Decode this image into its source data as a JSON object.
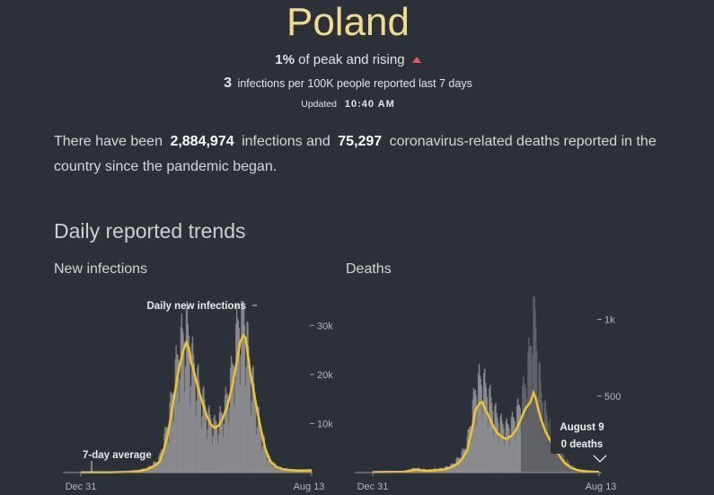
{
  "country": "Poland",
  "peak": {
    "percent": "1%",
    "text": "of peak and rising"
  },
  "rate": {
    "value": "3",
    "text": "infections per 100K people reported last 7 days"
  },
  "updated": {
    "label": "Updated",
    "time": "10:40 AM"
  },
  "summary": {
    "p1": "There have been",
    "infections": "2,884,974",
    "p2": "infections and",
    "deaths": "75,297",
    "p3": "coronavirus-related deaths reported in the country since the pandemic began."
  },
  "section_title": "Daily reported trends",
  "colors": {
    "line": "#f2c230",
    "bar": "#8f9194",
    "area": "#8a8b8d",
    "bg": "#2c3038"
  },
  "chart_data": [
    {
      "type": "bar",
      "title": "New infections",
      "annotations": {
        "series": "Daily new infections",
        "average": "7-day average"
      },
      "x_labels": [
        "Dec 31",
        "Aug 13"
      ],
      "y_ticks": [
        {
          "value": 10000,
          "label": "10k"
        },
        {
          "value": 20000,
          "label": "20k"
        },
        {
          "value": 30000,
          "label": "30k"
        }
      ],
      "ylim": [
        0,
        35000
      ],
      "avg_points": [
        [
          0,
          50
        ],
        [
          40,
          60
        ],
        [
          60,
          120
        ],
        [
          75,
          350
        ],
        [
          85,
          700
        ],
        [
          95,
          1500
        ],
        [
          100,
          2200
        ],
        [
          105,
          4500
        ],
        [
          110,
          7500
        ],
        [
          115,
          12000
        ],
        [
          120,
          17000
        ],
        [
          125,
          21500
        ],
        [
          130,
          24800
        ],
        [
          134,
          26500
        ],
        [
          137,
          25500
        ],
        [
          140,
          22500
        ],
        [
          143,
          21000
        ],
        [
          146,
          19000
        ],
        [
          150,
          16500
        ],
        [
          155,
          14000
        ],
        [
          160,
          11500
        ],
        [
          165,
          9800
        ],
        [
          170,
          9100
        ],
        [
          175,
          9600
        ],
        [
          180,
          11000
        ],
        [
          186,
          13500
        ],
        [
          192,
          17500
        ],
        [
          198,
          22500
        ],
        [
          202,
          26500
        ],
        [
          206,
          28000
        ],
        [
          209,
          27500
        ],
        [
          212,
          24000
        ],
        [
          215,
          20500
        ],
        [
          219,
          17000
        ],
        [
          224,
          12500
        ],
        [
          229,
          8500
        ],
        [
          234,
          5000
        ],
        [
          240,
          2400
        ],
        [
          248,
          1200
        ],
        [
          256,
          700
        ],
        [
          265,
          500
        ],
        [
          275,
          400
        ],
        [
          285,
          400
        ],
        [
          293,
          450
        ]
      ],
      "bar_profile": [
        [
          0,
          80
        ],
        [
          40,
          90
        ],
        [
          60,
          180
        ],
        [
          75,
          500
        ],
        [
          85,
          1000
        ],
        [
          95,
          2200
        ],
        [
          100,
          3200
        ],
        [
          105,
          6500
        ],
        [
          110,
          10000
        ],
        [
          115,
          15000
        ],
        [
          120,
          21000
        ],
        [
          125,
          26000
        ],
        [
          130,
          28500
        ],
        [
          134,
          30500
        ],
        [
          137,
          28000
        ],
        [
          140,
          24500
        ],
        [
          143,
          23000
        ],
        [
          146,
          21000
        ],
        [
          150,
          18000
        ],
        [
          155,
          15500
        ],
        [
          160,
          12500
        ],
        [
          165,
          11000
        ],
        [
          170,
          10000
        ],
        [
          175,
          10800
        ],
        [
          180,
          12500
        ],
        [
          186,
          16000
        ],
        [
          192,
          21000
        ],
        [
          198,
          29000
        ],
        [
          202,
          33000
        ],
        [
          206,
          34000
        ],
        [
          209,
          32000
        ],
        [
          212,
          26000
        ],
        [
          215,
          22000
        ],
        [
          219,
          18500
        ],
        [
          224,
          13000
        ],
        [
          229,
          9000
        ],
        [
          234,
          5500
        ],
        [
          240,
          2800
        ],
        [
          248,
          1400
        ],
        [
          256,
          900
        ],
        [
          265,
          650
        ],
        [
          275,
          550
        ],
        [
          285,
          550
        ],
        [
          293,
          600
        ]
      ]
    },
    {
      "type": "bar",
      "title": "Deaths",
      "tooltip": {
        "date": "August 9",
        "value": "0 deaths"
      },
      "x_labels": [
        "Dec 31",
        "Aug 13"
      ],
      "y_ticks": [
        {
          "value": 500,
          "label": "500"
        },
        {
          "value": 1000,
          "label": "1k"
        }
      ],
      "ylim": [
        0,
        1150
      ],
      "avg_points": [
        [
          0,
          3
        ],
        [
          40,
          5
        ],
        [
          50,
          15
        ],
        [
          55,
          20
        ],
        [
          60,
          15
        ],
        [
          70,
          12
        ],
        [
          90,
          20
        ],
        [
          100,
          35
        ],
        [
          108,
          60
        ],
        [
          115,
          100
        ],
        [
          120,
          150
        ],
        [
          125,
          260
        ],
        [
          130,
          400
        ],
        [
          135,
          450
        ],
        [
          139,
          460
        ],
        [
          143,
          410
        ],
        [
          148,
          360
        ],
        [
          153,
          300
        ],
        [
          158,
          260
        ],
        [
          164,
          230
        ],
        [
          170,
          220
        ],
        [
          176,
          240
        ],
        [
          182,
          280
        ],
        [
          188,
          350
        ],
        [
          194,
          420
        ],
        [
          200,
          460
        ],
        [
          204,
          520
        ],
        [
          207,
          480
        ],
        [
          210,
          410
        ],
        [
          214,
          340
        ],
        [
          219,
          270
        ],
        [
          226,
          200
        ],
        [
          232,
          150
        ],
        [
          238,
          100
        ],
        [
          244,
          60
        ],
        [
          252,
          30
        ],
        [
          260,
          15
        ],
        [
          270,
          8
        ],
        [
          280,
          5
        ],
        [
          287,
          4
        ]
      ],
      "bar_profile": [
        [
          0,
          5
        ],
        [
          40,
          8
        ],
        [
          50,
          25
        ],
        [
          55,
          30
        ],
        [
          60,
          25
        ],
        [
          70,
          18
        ],
        [
          90,
          30
        ],
        [
          100,
          50
        ],
        [
          108,
          90
        ],
        [
          115,
          140
        ],
        [
          120,
          210
        ],
        [
          125,
          360
        ],
        [
          130,
          540
        ],
        [
          135,
          600
        ],
        [
          139,
          620
        ],
        [
          143,
          560
        ],
        [
          148,
          500
        ],
        [
          153,
          420
        ],
        [
          158,
          360
        ],
        [
          164,
          320
        ],
        [
          170,
          300
        ],
        [
          176,
          330
        ],
        [
          182,
          380
        ],
        [
          188,
          470
        ],
        [
          194,
          600
        ],
        [
          200,
          820
        ],
        [
          204,
          1150
        ],
        [
          207,
          950
        ],
        [
          210,
          700
        ],
        [
          214,
          520
        ],
        [
          219,
          400
        ],
        [
          226,
          300
        ],
        [
          232,
          220
        ],
        [
          238,
          150
        ],
        [
          244,
          90
        ],
        [
          252,
          45
        ],
        [
          260,
          22
        ],
        [
          270,
          12
        ],
        [
          280,
          8
        ],
        [
          287,
          6
        ]
      ]
    }
  ]
}
